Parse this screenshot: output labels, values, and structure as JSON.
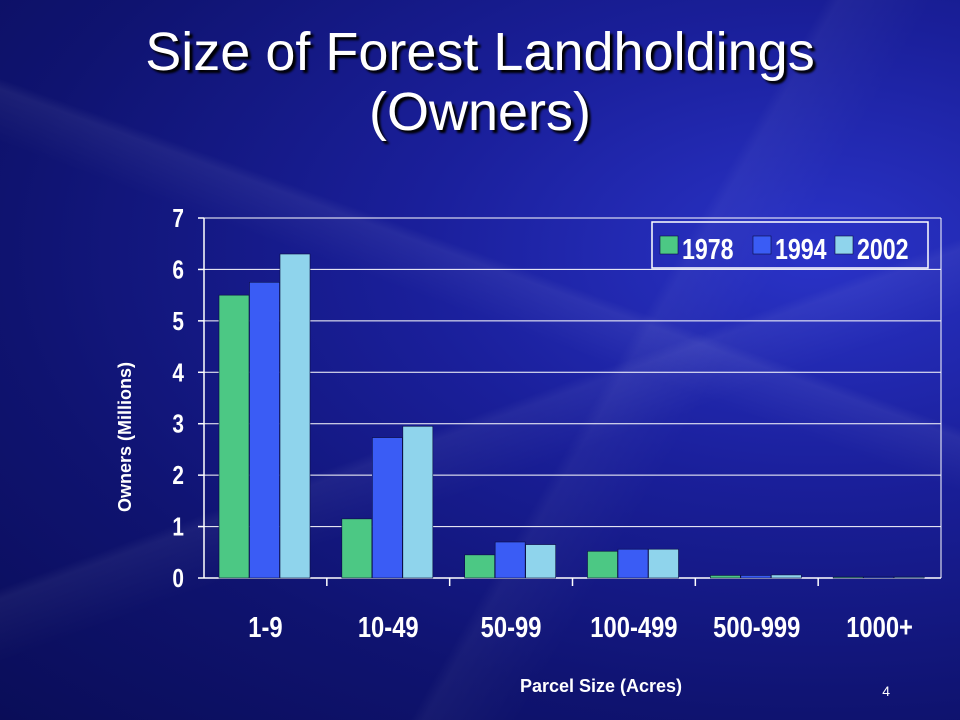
{
  "slide": {
    "title_line1": "Size of Forest Landholdings",
    "title_line2": "(Owners)",
    "page_number": "4"
  },
  "colors": {
    "background": "#1a1f9a",
    "series_1978": "#4cc884",
    "series_1994": "#3a5cf5",
    "series_2002": "#8fd4ec",
    "text": "#ffffff"
  },
  "chart_data": {
    "type": "bar",
    "categories": [
      "1-9",
      "10-49",
      "50-99",
      "100-499",
      "500-999",
      "1000+"
    ],
    "series": [
      {
        "name": "1978",
        "values": [
          5.5,
          1.15,
          0.45,
          0.52,
          0.05,
          0.02
        ],
        "color": "#4cc884"
      },
      {
        "name": "1994",
        "values": [
          5.75,
          2.73,
          0.7,
          0.56,
          0.05,
          0.02
        ],
        "color": "#3a5cf5"
      },
      {
        "name": "2002",
        "values": [
          6.3,
          2.95,
          0.65,
          0.56,
          0.06,
          0.02
        ],
        "color": "#8fd4ec"
      }
    ],
    "title": "",
    "xlabel": "Parcel Size (Acres)",
    "ylabel": "Owners (Millions)",
    "ylim": [
      0,
      7
    ],
    "yticks": [
      0,
      1,
      2,
      3,
      4,
      5,
      6,
      7
    ],
    "grid": true,
    "legend_position": "top-right"
  }
}
